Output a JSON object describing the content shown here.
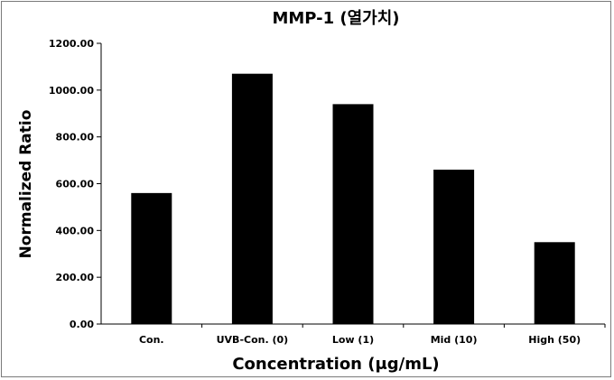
{
  "chart_data": {
    "type": "bar",
    "title": "MMP-1 (열가치)",
    "xlabel": "Concentration (μg/mL)",
    "ylabel": "Normalized Ratio",
    "categories": [
      "Con.",
      "UVB-Con. (0)",
      "Low (1)",
      "Mid (10)",
      "High (50)"
    ],
    "values": [
      560,
      1070,
      940,
      660,
      350
    ],
    "ylim": [
      0,
      1200
    ],
    "yticks": [
      "0.00",
      "200.00",
      "400.00",
      "600.00",
      "800.00",
      "1000.00",
      "1200.00"
    ],
    "bar_color": "#000000",
    "grid": false,
    "legend": "none"
  }
}
